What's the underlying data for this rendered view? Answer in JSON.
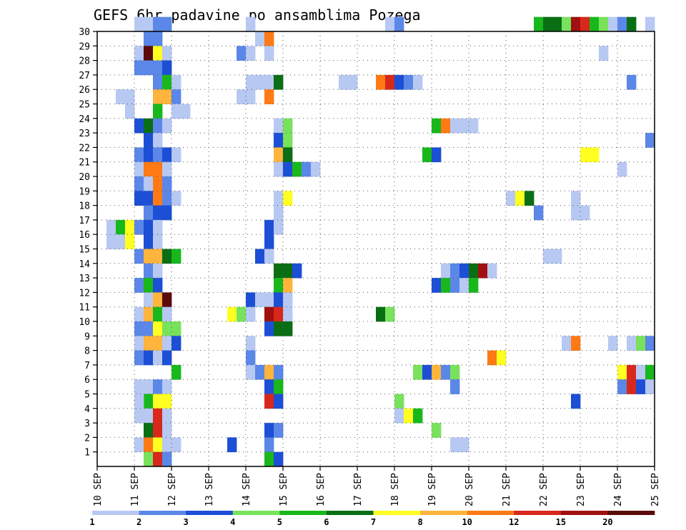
{
  "chart_data": {
    "type": "heatmap",
    "title": "GEFS 6hr padavine po ansamblima Pozega",
    "xlabel": "",
    "ylabel": "",
    "x_tick_labels": [
      "10 SEP",
      "11 SEP",
      "12 SEP",
      "13 SEP",
      "14 SEP",
      "15 SEP",
      "16 SEP",
      "17 SEP",
      "18 SEP",
      "19 SEP",
      "20 SEP",
      "21 SEP",
      "22 SEP",
      "23 SEP",
      "24 SEP",
      "25 SEP"
    ],
    "x_range_steps": [
      0,
      60
    ],
    "y_tick_labels": [
      "1",
      "2",
      "3",
      "4",
      "5",
      "6",
      "7",
      "8",
      "9",
      "10",
      "11",
      "12",
      "13",
      "14",
      "15",
      "16",
      "17",
      "18",
      "19",
      "20",
      "21",
      "22",
      "23",
      "24",
      "25",
      "26",
      "27",
      "28",
      "29",
      "30"
    ],
    "y_range": [
      0,
      30
    ],
    "grid": true,
    "colorbar": {
      "labels": [
        "1",
        "2",
        "3",
        "4",
        "5",
        "6",
        "7",
        "8",
        "10",
        "12",
        "15",
        "20"
      ],
      "colors": [
        "#b7c8f2",
        "#5b87e8",
        "#1c4fd6",
        "#78e25c",
        "#18b81c",
        "#0a6e14",
        "#ffff22",
        "#ffb43c",
        "#ff7a14",
        "#d8281c",
        "#a01010",
        "#5c0a0a"
      ]
    },
    "cells": [
      [
        30,
        4,
        0
      ],
      [
        30,
        5,
        0
      ],
      [
        30,
        6,
        1
      ],
      [
        30,
        7,
        1
      ],
      [
        30,
        16,
        0
      ],
      [
        30,
        31,
        0
      ],
      [
        30,
        32,
        1
      ],
      [
        30,
        47,
        4
      ],
      [
        30,
        48,
        5
      ],
      [
        30,
        49,
        5
      ],
      [
        30,
        50,
        3
      ],
      [
        30,
        51,
        10
      ],
      [
        30,
        52,
        9
      ],
      [
        30,
        53,
        4
      ],
      [
        30,
        54,
        3
      ],
      [
        30,
        55,
        0
      ],
      [
        30,
        56,
        1
      ],
      [
        30,
        57,
        5
      ],
      [
        30,
        59,
        0
      ],
      [
        29,
        5,
        1
      ],
      [
        29,
        6,
        1
      ],
      [
        29,
        17,
        0
      ],
      [
        29,
        18,
        8
      ],
      [
        28,
        4,
        0
      ],
      [
        28,
        5,
        11
      ],
      [
        28,
        6,
        6
      ],
      [
        28,
        7,
        0
      ],
      [
        28,
        15,
        1
      ],
      [
        28,
        16,
        0
      ],
      [
        28,
        18,
        0
      ],
      [
        28,
        54,
        0
      ],
      [
        27,
        4,
        1
      ],
      [
        27,
        5,
        1
      ],
      [
        27,
        6,
        1
      ],
      [
        27,
        7,
        2
      ],
      [
        26,
        6,
        1
      ],
      [
        26,
        7,
        4
      ],
      [
        26,
        8,
        0
      ],
      [
        26,
        16,
        0
      ],
      [
        26,
        17,
        0
      ],
      [
        26,
        18,
        0
      ],
      [
        26,
        19,
        5
      ],
      [
        26,
        26,
        0
      ],
      [
        26,
        27,
        0
      ],
      [
        26,
        30,
        8
      ],
      [
        26,
        31,
        9
      ],
      [
        26,
        32,
        2
      ],
      [
        26,
        33,
        1
      ],
      [
        26,
        34,
        0
      ],
      [
        26,
        57,
        1
      ],
      [
        25,
        2,
        0
      ],
      [
        25,
        3,
        0
      ],
      [
        25,
        6,
        7
      ],
      [
        25,
        7,
        7
      ],
      [
        25,
        8,
        1
      ],
      [
        25,
        15,
        0
      ],
      [
        25,
        16,
        0
      ],
      [
        25,
        18,
        8
      ],
      [
        24,
        3,
        0
      ],
      [
        24,
        6,
        4
      ],
      [
        24,
        8,
        0
      ],
      [
        24,
        9,
        0
      ],
      [
        23,
        4,
        2
      ],
      [
        23,
        5,
        5
      ],
      [
        23,
        6,
        1
      ],
      [
        23,
        7,
        0
      ],
      [
        23,
        19,
        0
      ],
      [
        23,
        20,
        3
      ],
      [
        23,
        36,
        4
      ],
      [
        23,
        37,
        8
      ],
      [
        23,
        38,
        0
      ],
      [
        23,
        39,
        0
      ],
      [
        23,
        40,
        0
      ],
      [
        22,
        5,
        2
      ],
      [
        22,
        6,
        0
      ],
      [
        22,
        19,
        2
      ],
      [
        22,
        20,
        3
      ],
      [
        22,
        59,
        1
      ],
      [
        21,
        4,
        1
      ],
      [
        21,
        5,
        2
      ],
      [
        21,
        6,
        1
      ],
      [
        21,
        7,
        2
      ],
      [
        21,
        8,
        0
      ],
      [
        21,
        19,
        7
      ],
      [
        21,
        20,
        5
      ],
      [
        21,
        35,
        4
      ],
      [
        21,
        36,
        2
      ],
      [
        21,
        52,
        6
      ],
      [
        21,
        53,
        6
      ],
      [
        20,
        4,
        0
      ],
      [
        20,
        5,
        8
      ],
      [
        20,
        6,
        8
      ],
      [
        20,
        7,
        0
      ],
      [
        20,
        19,
        0
      ],
      [
        20,
        20,
        2
      ],
      [
        20,
        21,
        4
      ],
      [
        20,
        22,
        1
      ],
      [
        20,
        23,
        0
      ],
      [
        20,
        56,
        0
      ],
      [
        19,
        4,
        1
      ],
      [
        19,
        5,
        0
      ],
      [
        19,
        6,
        8
      ],
      [
        19,
        7,
        1
      ],
      [
        18,
        4,
        2
      ],
      [
        18,
        5,
        2
      ],
      [
        18,
        6,
        8
      ],
      [
        18,
        7,
        1
      ],
      [
        18,
        8,
        0
      ],
      [
        18,
        19,
        0
      ],
      [
        18,
        20,
        6
      ],
      [
        18,
        44,
        0
      ],
      [
        18,
        45,
        6
      ],
      [
        18,
        46,
        5
      ],
      [
        18,
        51,
        0
      ],
      [
        17,
        5,
        1
      ],
      [
        17,
        6,
        2
      ],
      [
        17,
        7,
        2
      ],
      [
        17,
        19,
        0
      ],
      [
        17,
        47,
        1
      ],
      [
        17,
        51,
        0
      ],
      [
        17,
        52,
        0
      ],
      [
        16,
        1,
        0
      ],
      [
        16,
        2,
        4
      ],
      [
        16,
        3,
        6
      ],
      [
        16,
        4,
        1
      ],
      [
        16,
        5,
        2
      ],
      [
        16,
        6,
        0
      ],
      [
        16,
        18,
        2
      ],
      [
        16,
        19,
        0
      ],
      [
        15,
        1,
        0
      ],
      [
        15,
        2,
        0
      ],
      [
        15,
        3,
        6
      ],
      [
        15,
        5,
        2
      ],
      [
        15,
        6,
        0
      ],
      [
        15,
        18,
        2
      ],
      [
        14,
        4,
        1
      ],
      [
        14,
        5,
        7
      ],
      [
        14,
        6,
        7
      ],
      [
        14,
        7,
        5
      ],
      [
        14,
        8,
        4
      ],
      [
        14,
        17,
        2
      ],
      [
        14,
        18,
        0
      ],
      [
        14,
        48,
        0
      ],
      [
        14,
        49,
        0
      ],
      [
        13,
        5,
        1
      ],
      [
        13,
        6,
        0
      ],
      [
        13,
        19,
        5
      ],
      [
        13,
        20,
        5
      ],
      [
        13,
        21,
        2
      ],
      [
        13,
        37,
        0
      ],
      [
        13,
        38,
        1
      ],
      [
        13,
        39,
        2
      ],
      [
        13,
        40,
        5
      ],
      [
        13,
        41,
        10
      ],
      [
        13,
        42,
        0
      ],
      [
        12,
        4,
        1
      ],
      [
        12,
        5,
        4
      ],
      [
        12,
        6,
        2
      ],
      [
        12,
        19,
        4
      ],
      [
        12,
        20,
        7
      ],
      [
        12,
        36,
        2
      ],
      [
        12,
        37,
        4
      ],
      [
        12,
        38,
        1
      ],
      [
        12,
        39,
        0
      ],
      [
        12,
        40,
        4
      ],
      [
        11,
        5,
        0
      ],
      [
        11,
        6,
        7
      ],
      [
        11,
        7,
        11
      ],
      [
        11,
        16,
        2
      ],
      [
        11,
        17,
        0
      ],
      [
        11,
        18,
        0
      ],
      [
        11,
        19,
        2
      ],
      [
        11,
        20,
        0
      ],
      [
        10,
        4,
        0
      ],
      [
        10,
        5,
        7
      ],
      [
        10,
        6,
        4
      ],
      [
        10,
        7,
        0
      ],
      [
        10,
        14,
        6
      ],
      [
        10,
        15,
        3
      ],
      [
        10,
        16,
        0
      ],
      [
        10,
        18,
        10
      ],
      [
        10,
        19,
        9
      ],
      [
        10,
        20,
        0
      ],
      [
        10,
        30,
        5
      ],
      [
        10,
        31,
        3
      ],
      [
        9,
        4,
        1
      ],
      [
        9,
        5,
        1
      ],
      [
        9,
        6,
        6
      ],
      [
        9,
        7,
        3
      ],
      [
        9,
        8,
        3
      ],
      [
        9,
        18,
        2
      ],
      [
        9,
        19,
        5
      ],
      [
        9,
        20,
        5
      ],
      [
        8,
        4,
        0
      ],
      [
        8,
        5,
        7
      ],
      [
        8,
        6,
        7
      ],
      [
        8,
        7,
        0
      ],
      [
        8,
        8,
        2
      ],
      [
        8,
        16,
        0
      ],
      [
        8,
        50,
        0
      ],
      [
        8,
        51,
        8
      ],
      [
        8,
        55,
        0
      ],
      [
        8,
        57,
        0
      ],
      [
        8,
        58,
        3
      ],
      [
        8,
        59,
        1
      ],
      [
        7,
        4,
        1
      ],
      [
        7,
        5,
        2
      ],
      [
        7,
        6,
        0
      ],
      [
        7,
        7,
        2
      ],
      [
        7,
        16,
        1
      ],
      [
        7,
        42,
        8
      ],
      [
        7,
        43,
        6
      ],
      [
        6,
        8,
        4
      ],
      [
        6,
        16,
        0
      ],
      [
        6,
        17,
        1
      ],
      [
        6,
        18,
        7
      ],
      [
        6,
        19,
        1
      ],
      [
        6,
        34,
        3
      ],
      [
        6,
        35,
        2
      ],
      [
        6,
        36,
        7
      ],
      [
        6,
        37,
        1
      ],
      [
        6,
        38,
        3
      ],
      [
        6,
        56,
        6
      ],
      [
        6,
        57,
        9
      ],
      [
        6,
        58,
        0
      ],
      [
        6,
        59,
        4
      ],
      [
        5,
        4,
        0
      ],
      [
        5,
        5,
        0
      ],
      [
        5,
        6,
        1
      ],
      [
        5,
        7,
        0
      ],
      [
        5,
        18,
        2
      ],
      [
        5,
        19,
        4
      ],
      [
        5,
        38,
        1
      ],
      [
        5,
        56,
        1
      ],
      [
        5,
        57,
        9
      ],
      [
        5,
        58,
        2
      ],
      [
        5,
        59,
        0
      ],
      [
        4,
        4,
        0
      ],
      [
        4,
        5,
        4
      ],
      [
        4,
        6,
        6
      ],
      [
        4,
        7,
        6
      ],
      [
        4,
        18,
        9
      ],
      [
        4,
        19,
        2
      ],
      [
        4,
        32,
        3
      ],
      [
        4,
        51,
        2
      ],
      [
        3,
        4,
        0
      ],
      [
        4,
        4,
        0
      ],
      [
        3,
        5,
        0
      ],
      [
        3,
        6,
        9
      ],
      [
        3,
        7,
        0
      ],
      [
        3,
        32,
        0
      ],
      [
        3,
        33,
        6
      ],
      [
        3,
        34,
        4
      ],
      [
        2,
        5,
        5
      ],
      [
        2,
        6,
        9
      ],
      [
        2,
        7,
        0
      ],
      [
        2,
        18,
        2
      ],
      [
        2,
        19,
        1
      ],
      [
        2,
        36,
        3
      ],
      [
        1,
        4,
        0
      ],
      [
        1,
        5,
        8
      ],
      [
        1,
        6,
        6
      ],
      [
        1,
        7,
        0
      ],
      [
        1,
        8,
        0
      ],
      [
        1,
        14,
        2
      ],
      [
        1,
        18,
        1
      ],
      [
        1,
        38,
        0
      ],
      [
        1,
        39,
        0
      ],
      [
        0,
        5,
        3
      ],
      [
        0,
        6,
        9
      ],
      [
        0,
        7,
        1
      ],
      [
        0,
        18,
        4
      ],
      [
        0,
        19,
        2
      ]
    ]
  }
}
